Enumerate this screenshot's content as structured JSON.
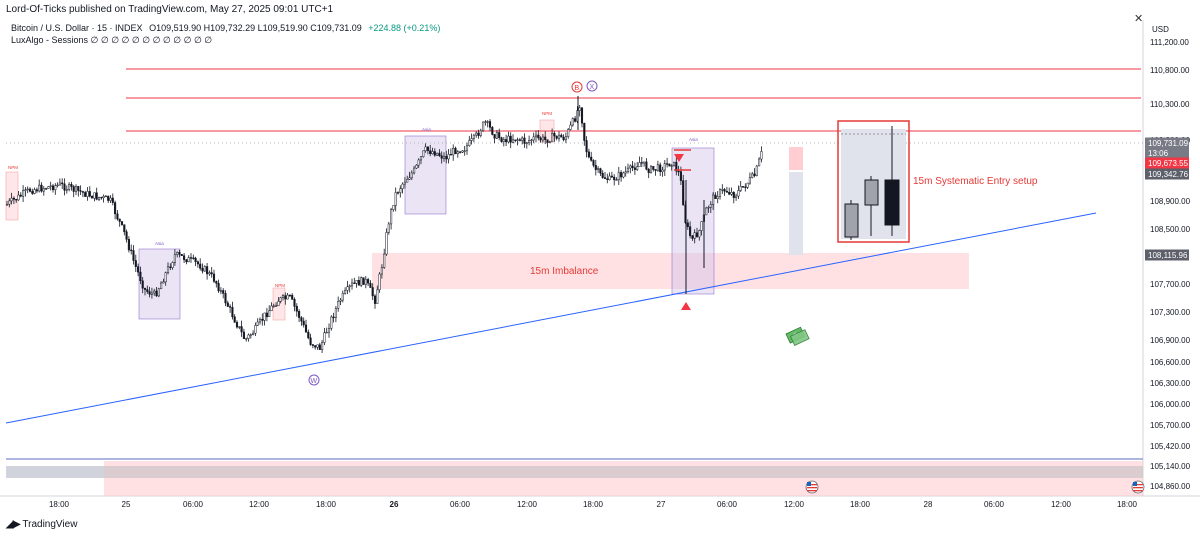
{
  "header": {
    "publisher": "Lord-Of-Ticks published on TradingView.com, May 27, 2025 09:01 UTC+1"
  },
  "legend": {
    "symbol": "Bitcoin / U.S. Dollar · 15 · INDEX",
    "ohlc": "O109,519.90  H109,732.29  L109,519.90  C109,731.09",
    "change": "+224.88 (+0.21%)",
    "indicator": "LuxAlgo - Sessions  ∅ ∅ ∅ ∅ ∅ ∅ ∅ ∅ ∅ ∅ ∅ ∅"
  },
  "footer": {
    "brand": "TradingView"
  },
  "chart_data": {
    "type": "candlestick",
    "title": "",
    "y_axis_unit": "USD",
    "y_axis_side": "right",
    "ylim": [
      104700,
      111400
    ],
    "y_ticks": [
      "111,200.00",
      "110,800.00",
      "110,300.00",
      "109,800.00",
      "108,900.00",
      "108,500.00",
      "107,700.00",
      "107,300.00",
      "106,900.00",
      "106,600.00",
      "106,300.00",
      "106,000.00",
      "105,700.00",
      "105,420.00",
      "105,140.00",
      "104,860.00"
    ],
    "x_ticks": [
      "18:00",
      "25",
      "06:00",
      "12:00",
      "18:00",
      "26",
      "06:00",
      "12:00",
      "18:00",
      "27",
      "06:00",
      "12:00",
      "18:00",
      "28",
      "06:00",
      "12:00",
      "18:00"
    ],
    "x_bold_ticks": [
      "26"
    ],
    "price_labels": [
      {
        "text": "109,731.09",
        "role": "last-price",
        "color": "#787b86"
      },
      {
        "text": "13:06",
        "role": "countdown",
        "color": "#787b86"
      },
      {
        "text": "109,673.55",
        "role": "level",
        "color": "#f23645"
      },
      {
        "text": "109,342.76",
        "role": "level",
        "color": "#5d606b"
      },
      {
        "text": "108,115.96",
        "role": "level",
        "color": "#5d606b"
      }
    ],
    "horizontal_levels": [
      110850,
      110400,
      110020
    ],
    "level_color": "#f23645",
    "trendline": {
      "color": "#2962ff"
    },
    "annotations": {
      "imbalance": "15m Imbalance",
      "setup": "15m Systematic Entry setup",
      "sessions": [
        "Asia",
        "Asia",
        "Asia",
        "NPM",
        "NPM",
        "NPM",
        "NPM"
      ],
      "markers": [
        "B",
        "X",
        "W"
      ]
    },
    "colors": {
      "up": "#131722",
      "down": "#131722",
      "zone_pink": "#ffcdd2",
      "zone_purple": "#d1c4e9",
      "accent_red": "#e53935"
    }
  }
}
